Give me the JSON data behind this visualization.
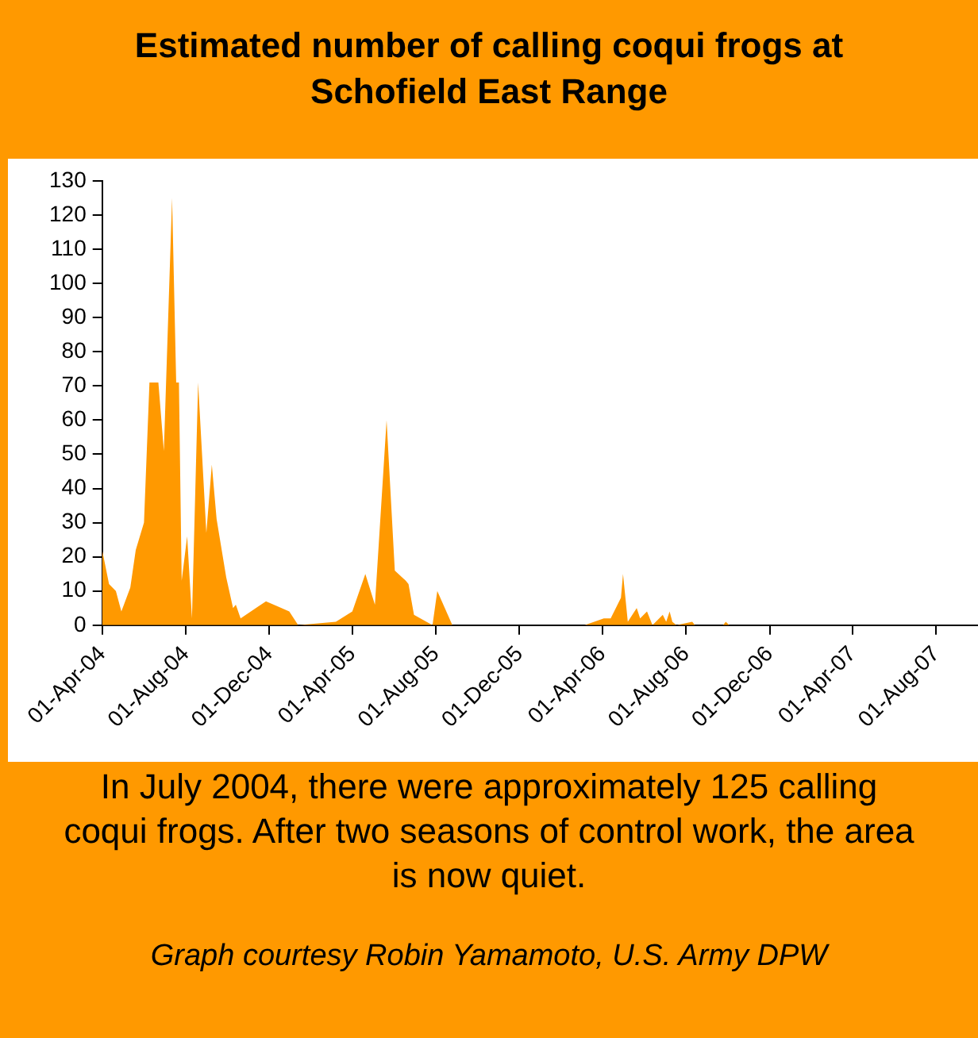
{
  "chart_data": {
    "type": "area",
    "title": "Estimated number of calling coqui frogs at Schofield East Range",
    "x": [
      "2004-04-01",
      "2004-04-11",
      "2004-04-21",
      "2004-04-29",
      "2004-05-12",
      "2004-05-20",
      "2004-06-01",
      "2004-06-09",
      "2004-06-22",
      "2004-06-30",
      "2004-07-12",
      "2004-07-18",
      "2004-07-22",
      "2004-07-26",
      "2004-08-03",
      "2004-08-10",
      "2004-08-19",
      "2004-08-31",
      "2004-09-08",
      "2004-09-15",
      "2004-09-29",
      "2004-10-09",
      "2004-10-13",
      "2004-10-20",
      "2004-11-26",
      "2004-12-30",
      "2005-01-12",
      "2005-03-08",
      "2005-04-01",
      "2005-04-20",
      "2005-05-04",
      "2005-05-21",
      "2005-06-02",
      "2005-06-18",
      "2005-06-22",
      "2005-06-30",
      "2005-07-27",
      "2005-08-03",
      "2005-08-25",
      "2006-03-06",
      "2006-04-03",
      "2006-04-13",
      "2006-04-28",
      "2006-05-01",
      "2006-05-08",
      "2006-05-21",
      "2006-05-26",
      "2006-06-05",
      "2006-06-13",
      "2006-06-28",
      "2006-07-03",
      "2006-07-08",
      "2006-07-12",
      "2006-07-18",
      "2006-08-10",
      "2006-08-14",
      "2006-09-24",
      "2006-09-28",
      "2006-10-03",
      "2007-10-01"
    ],
    "series": [
      {
        "color": "#ff9900",
        "values": [
          22,
          12,
          10,
          4,
          11,
          22,
          30,
          71,
          71,
          51,
          125,
          71,
          71,
          13,
          26,
          2,
          71,
          27,
          47,
          31,
          14,
          5,
          6,
          2,
          7,
          4,
          0,
          1,
          4,
          15,
          6,
          60,
          16,
          13,
          12,
          3,
          0,
          10,
          0,
          0,
          2,
          2,
          8,
          15,
          1,
          5,
          2,
          4,
          0,
          3,
          1,
          4,
          1,
          0,
          1,
          0,
          0,
          1,
          0,
          0
        ]
      }
    ],
    "xlim": [
      "2004-04-01",
      "2007-10-01"
    ],
    "xticks": [
      {
        "value": "2004-04-01",
        "label": "01-Apr-04"
      },
      {
        "value": "2004-08-01",
        "label": "01-Aug-04"
      },
      {
        "value": "2004-12-01",
        "label": "01-Dec-04"
      },
      {
        "value": "2005-04-01",
        "label": "01-Apr-05"
      },
      {
        "value": "2005-08-01",
        "label": "01-Aug-05"
      },
      {
        "value": "2005-12-01",
        "label": "01-Dec-05"
      },
      {
        "value": "2006-04-01",
        "label": "01-Apr-06"
      },
      {
        "value": "2006-08-01",
        "label": "01-Aug-06"
      },
      {
        "value": "2006-12-01",
        "label": "01-Dec-06"
      },
      {
        "value": "2007-04-01",
        "label": "01-Apr-07"
      },
      {
        "value": "2007-08-01",
        "label": "01-Aug-07"
      }
    ],
    "ylim": [
      0,
      130
    ],
    "yticks": [
      0,
      10,
      20,
      30,
      40,
      50,
      60,
      70,
      80,
      90,
      100,
      110,
      120,
      130
    ],
    "grid": false,
    "legend": false,
    "annotations": [
      "In July 2004, there were approximately 125 calling coqui frogs. After two seasons of control work, the area is now quiet.",
      "Graph courtesy Robin Yamamoto, U.S. Army DPW"
    ]
  }
}
